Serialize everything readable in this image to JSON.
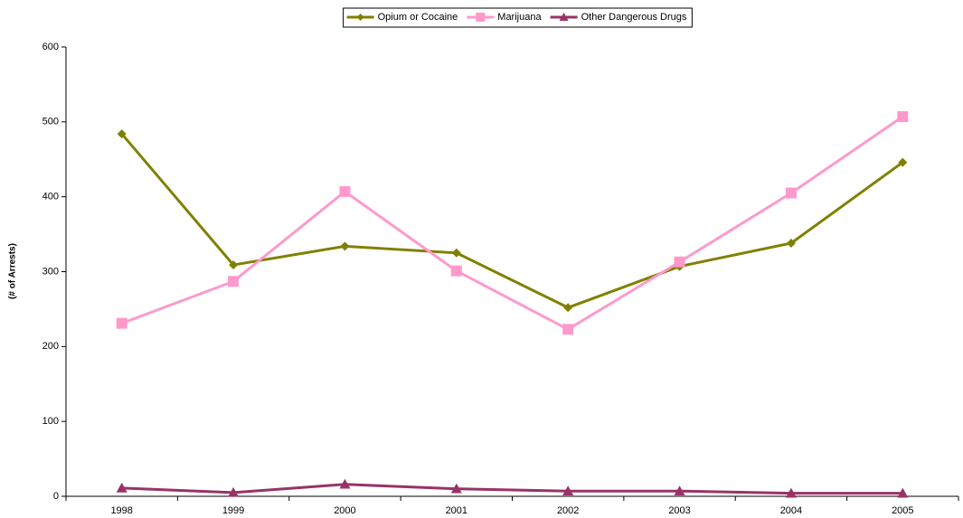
{
  "chart_data": {
    "type": "line",
    "y_label": "(# of Arrests)",
    "categories": [
      "1998",
      "1999",
      "2000",
      "2001",
      "2002",
      "2003",
      "2004",
      "2005"
    ],
    "series": [
      {
        "name": "Opium or Cocaine",
        "color": "#808000",
        "marker": "diamond",
        "values": [
          484,
          309,
          334,
          325,
          252,
          307,
          338,
          446
        ]
      },
      {
        "name": "Marijuana",
        "color": "#ff99cc",
        "marker": "square",
        "values": [
          231,
          287,
          407,
          301,
          223,
          313,
          405,
          507
        ]
      },
      {
        "name": "Other Dangerous Drugs",
        "color": "#993366",
        "marker": "triangle",
        "values": [
          11,
          5,
          16,
          10,
          7,
          7,
          4,
          4
        ]
      }
    ],
    "ylim": [
      0,
      600
    ],
    "yticks": [
      0,
      100,
      200,
      300,
      400,
      500,
      600
    ],
    "grid": false,
    "legend": "top"
  }
}
